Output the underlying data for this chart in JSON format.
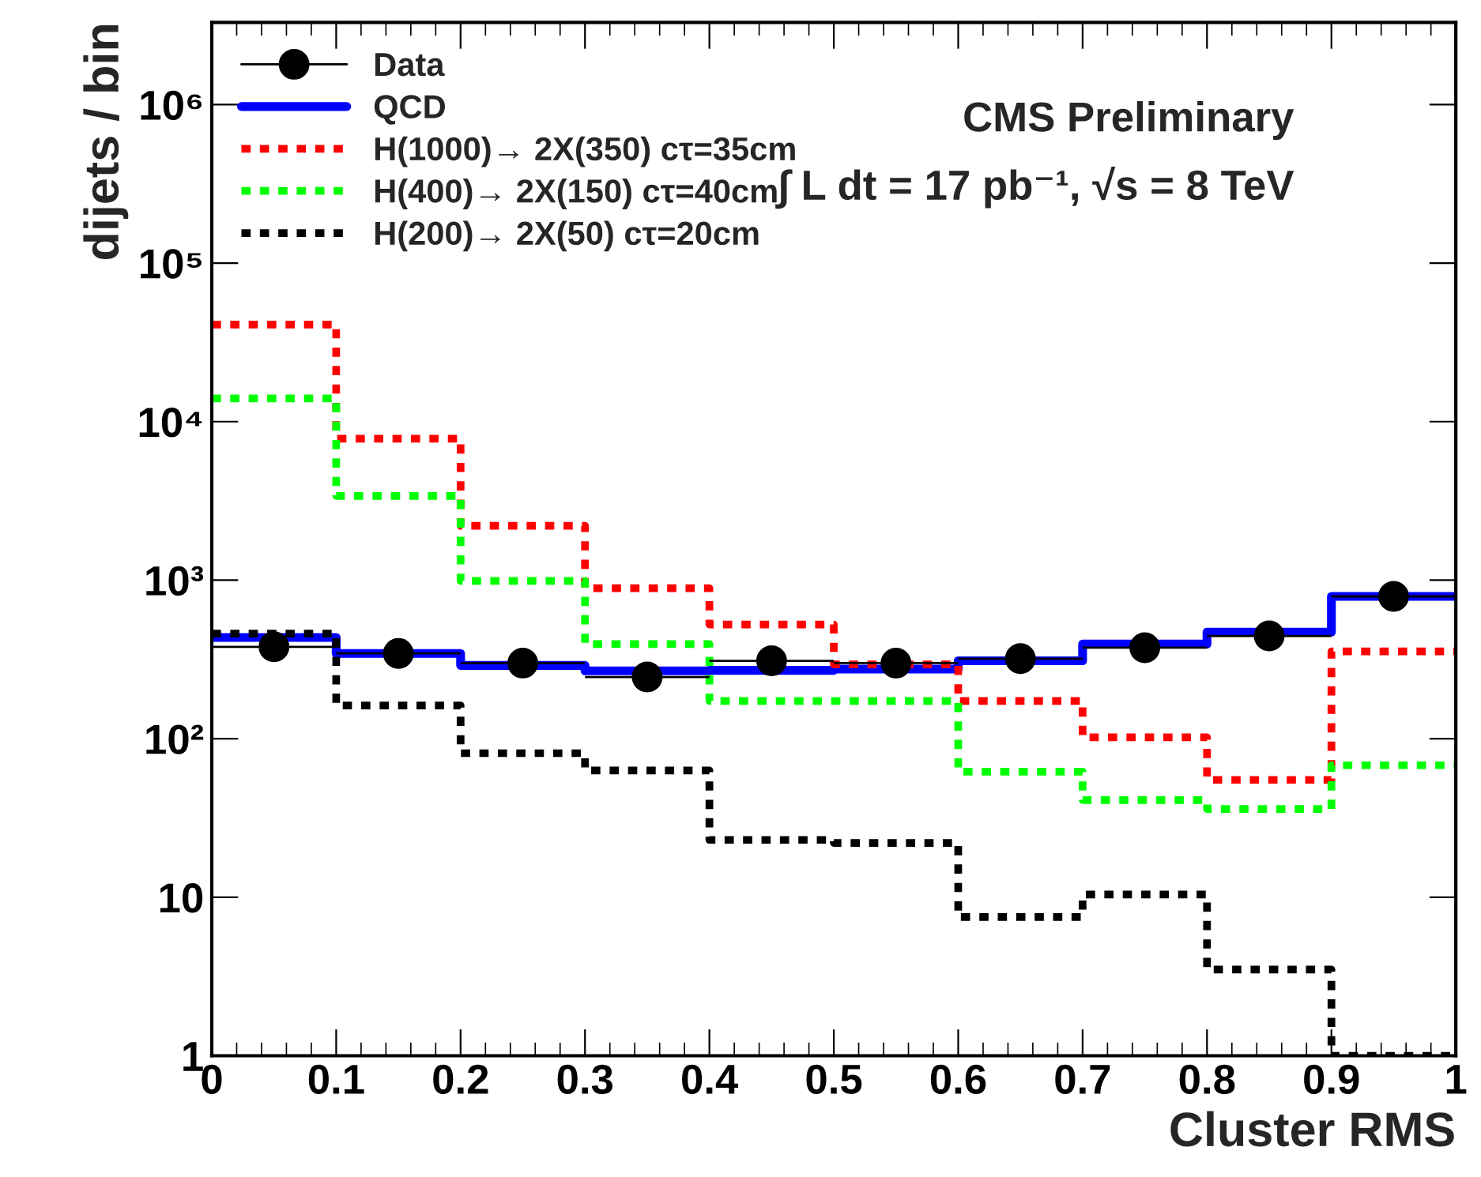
{
  "chart_data": {
    "type": "step",
    "xlabel": "Cluster RMS",
    "ylabel": "dijets / bin",
    "annotations": [
      "CMS Preliminary",
      "∫ L dt = 17 pb⁻¹, √s = 8 TeV"
    ],
    "x": [
      0,
      0.1,
      0.2,
      0.3,
      0.4,
      0.5,
      0.6,
      0.7,
      0.8,
      0.9,
      1
    ],
    "series": [
      {
        "name": "Data",
        "type": "scatter",
        "color": "#000000",
        "marker": "circle",
        "x": [
          0.05,
          0.15,
          0.25,
          0.35,
          0.45,
          0.55,
          0.65,
          0.75,
          0.85,
          0.95
        ],
        "values": [
          380,
          345,
          300,
          245,
          310,
          300,
          320,
          375,
          445,
          790
        ],
        "xerrors": [
          0.05,
          0.05,
          0.05,
          0.05,
          0.05,
          0.05,
          0.05,
          0.05,
          0.05,
          0.05
        ]
      },
      {
        "name": "QCD",
        "color": "#0000ff",
        "line_style": "solid",
        "values": [
          435,
          345,
          290,
          268,
          270,
          275,
          310,
          395,
          470,
          790,
          790
        ]
      },
      {
        "name": "H(1000)→ 2X(350) cτ=35cm",
        "color": "#ff0000",
        "line_style": "dotted",
        "values": [
          41000,
          7800,
          2200,
          890,
          525,
          294,
          173,
          102,
          55,
          355,
          355
        ]
      },
      {
        "name": "H(400)→ 2X(150) cτ=40cm",
        "color": "#00ff00",
        "line_style": "dotted",
        "values": [
          14000,
          3400,
          990,
          395,
          173,
          173,
          62,
          41,
          36,
          68,
          68
        ]
      },
      {
        "name": "H(200)→ 2X(50) cτ=20cm",
        "color": "#000000",
        "line_style": "dotted",
        "values": [
          460,
          162,
          81,
          63,
          23,
          22,
          7.5,
          10.4,
          3.5,
          1.0,
          1.0
        ]
      }
    ],
    "log": "y",
    "xlim": [
      0,
      1
    ],
    "ylim": [
      1,
      3300000
    ],
    "xticks": [
      0,
      0.1,
      0.2,
      0.3,
      0.4,
      0.5,
      0.6,
      0.7,
      0.8,
      0.9,
      1
    ],
    "yticks": [
      1,
      10,
      {
        "value": 100,
        "label": "10²"
      },
      {
        "value": 1000,
        "label": "10³"
      },
      {
        "value": 10000,
        "label": "10⁴"
      },
      {
        "value": 100000,
        "label": "10⁵"
      },
      {
        "value": 1000000,
        "label": "10⁶"
      }
    ],
    "grid": false,
    "legend": "top left"
  }
}
